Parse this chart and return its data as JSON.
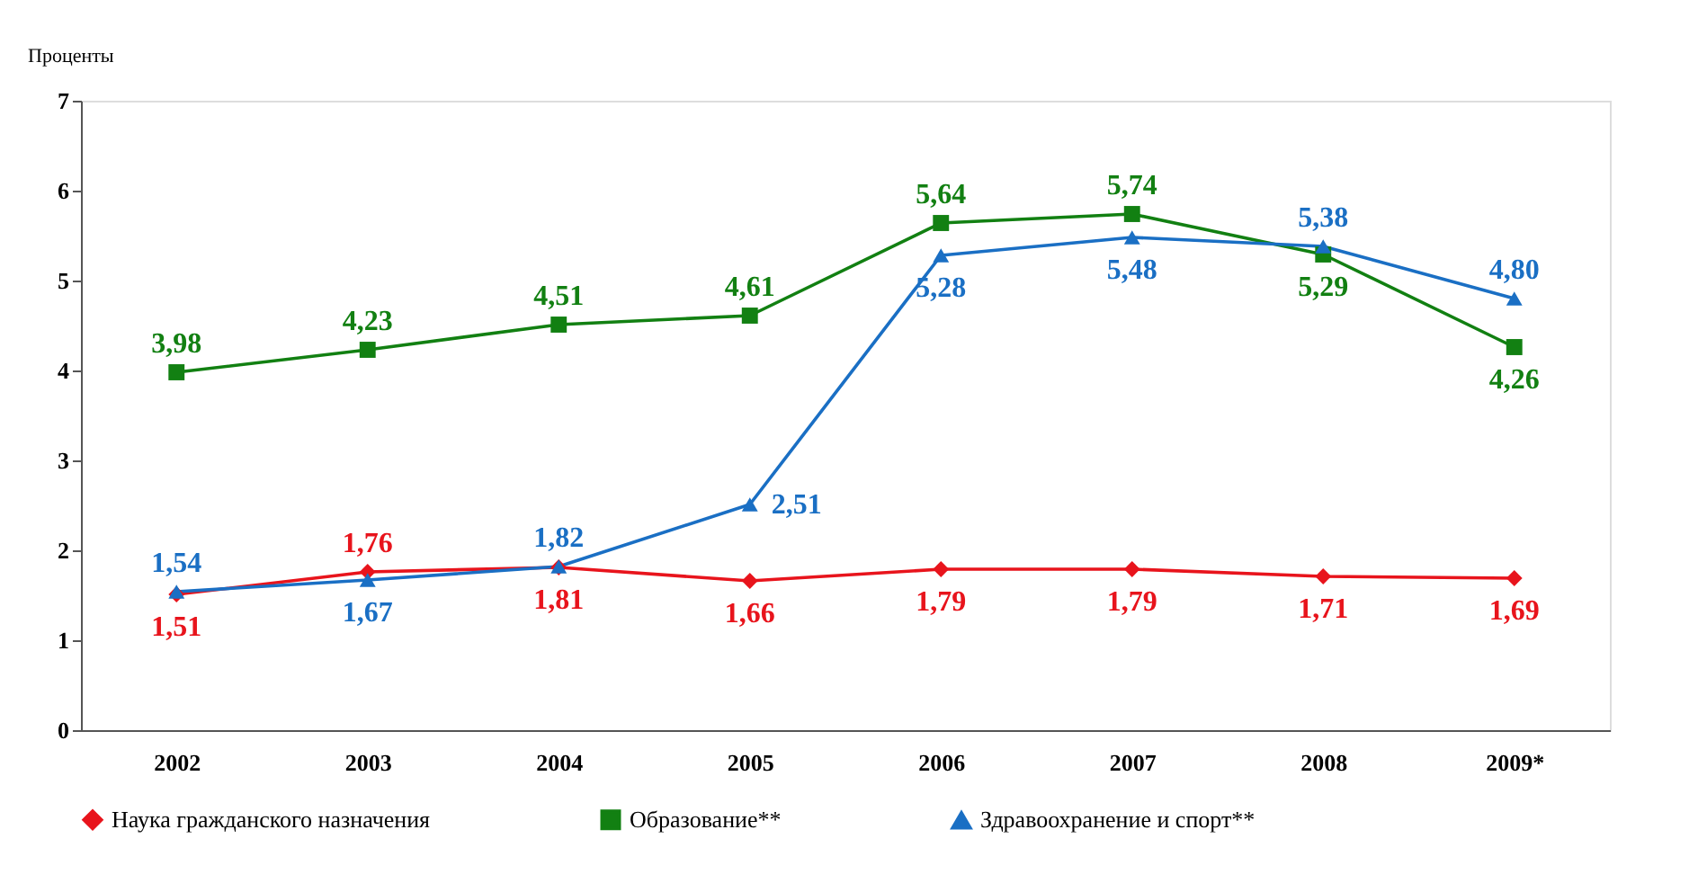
{
  "chart_data": {
    "type": "line",
    "ylabel": "Проценты",
    "categories": [
      "2002",
      "2003",
      "2004",
      "2005",
      "2006",
      "2007",
      "2008",
      "2009*"
    ],
    "series": [
      {
        "name": "Наука гражданского назначения",
        "color": "#e8141c",
        "marker": "diamond",
        "values": [
          1.51,
          1.76,
          1.81,
          1.66,
          1.79,
          1.79,
          1.71,
          1.69
        ],
        "value_labels": [
          "1,51",
          "1,76",
          "1,81",
          "1,66",
          "1,79",
          "1,79",
          "1,71",
          "1,69"
        ]
      },
      {
        "name": "Образование**",
        "color": "#128012",
        "marker": "square",
        "values": [
          3.98,
          4.23,
          4.51,
          4.61,
          5.64,
          5.74,
          5.29,
          4.26
        ],
        "value_labels": [
          "3,98",
          "4,23",
          "4,51",
          "4,61",
          "5,64",
          "5,74",
          "5,29",
          "4,26"
        ]
      },
      {
        "name": "Здравоохранение и спорт**",
        "color": "#1a6fc4",
        "marker": "triangle",
        "values": [
          1.54,
          1.67,
          1.82,
          2.51,
          5.28,
          5.48,
          5.38,
          4.8
        ],
        "value_labels": [
          "1,54",
          "1,67",
          "1,82",
          "2,51",
          "5,28",
          "5,48",
          "5,38",
          "4,80"
        ]
      }
    ],
    "ylim": [
      0,
      7
    ],
    "yticks": [
      0,
      1,
      2,
      3,
      4,
      5,
      6,
      7
    ],
    "grid": false,
    "legend": "bottom",
    "line_style": "solid"
  }
}
